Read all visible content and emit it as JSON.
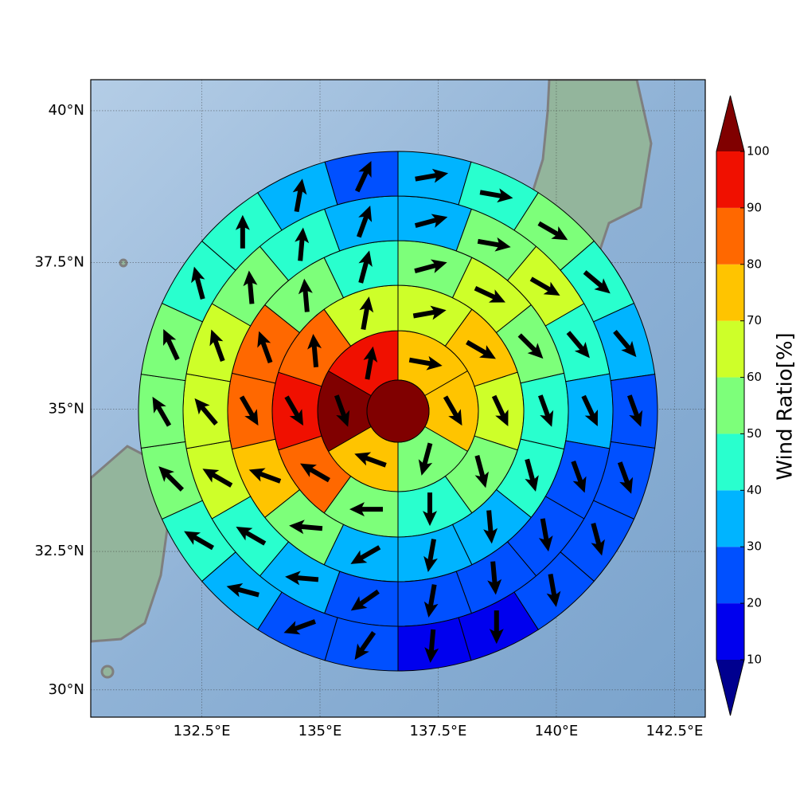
{
  "chart_data": {
    "type": "polar-sector-map",
    "projection": "mercator",
    "xlim": [
      130.15,
      143.15
    ],
    "ylim": [
      29.5,
      40.5
    ],
    "xticks": [
      {
        "value": 132.5,
        "label": "132.5°E"
      },
      {
        "value": 135,
        "label": "135°E"
      },
      {
        "value": 137.5,
        "label": "137.5°E"
      },
      {
        "value": 140,
        "label": "140°E"
      },
      {
        "value": 142.5,
        "label": "142.5°E"
      }
    ],
    "yticks": [
      {
        "value": 30,
        "label": "30°N"
      },
      {
        "value": 32.5,
        "label": "32.5°N"
      },
      {
        "value": 35,
        "label": "35°N"
      },
      {
        "value": 37.5,
        "label": "37.5°N"
      },
      {
        "value": 40,
        "label": "40°N"
      }
    ],
    "grid": true,
    "center_value": 105,
    "rings": [
      {
        "values": [
          75,
          75,
          55,
          75,
          105,
          95
        ],
        "directions": [
          100,
          150,
          195,
          290,
          160,
          10
        ]
      },
      {
        "values": [
          65,
          75,
          65,
          55,
          45,
          55,
          85,
          95,
          85,
          65
        ],
        "directions": [
          80,
          120,
          155,
          165,
          180,
          270,
          300,
          150,
          355,
          10
        ]
      },
      {
        "values": [
          55,
          65,
          55,
          45,
          45,
          35,
          35,
          35,
          55,
          75,
          85,
          85,
          55,
          45
        ],
        "directions": [
          75,
          115,
          135,
          160,
          165,
          175,
          190,
          240,
          275,
          290,
          150,
          340,
          355,
          15
        ]
      },
      {
        "values": [
          35,
          55,
          65,
          45,
          35,
          25,
          25,
          25,
          25,
          25,
          35,
          45,
          65,
          65,
          65,
          55,
          45,
          35
        ],
        "directions": [
          75,
          100,
          120,
          140,
          155,
          160,
          170,
          175,
          190,
          235,
          275,
          300,
          300,
          320,
          340,
          355,
          5,
          20
        ]
      },
      {
        "values": [
          35,
          45,
          55,
          45,
          35,
          25,
          25,
          25,
          25,
          15,
          15,
          25,
          25,
          35,
          45,
          55,
          55,
          55,
          45,
          45,
          35,
          25
        ],
        "directions": [
          80,
          100,
          120,
          130,
          140,
          160,
          160,
          165,
          170,
          180,
          185,
          215,
          250,
          285,
          300,
          315,
          330,
          335,
          345,
          0,
          10,
          25
        ]
      }
    ],
    "colorbar": {
      "label": "Wind Ratio[%]",
      "levels": [
        10,
        20,
        30,
        40,
        50,
        60,
        70,
        80,
        90,
        100
      ],
      "colors": [
        "#00008f",
        "#0000ee",
        "#0050ff",
        "#00b4ff",
        "#29ffce",
        "#7dff7a",
        "#ceff29",
        "#ffc400",
        "#ff6800",
        "#f01000",
        "#800000"
      ],
      "extend": "both"
    }
  }
}
